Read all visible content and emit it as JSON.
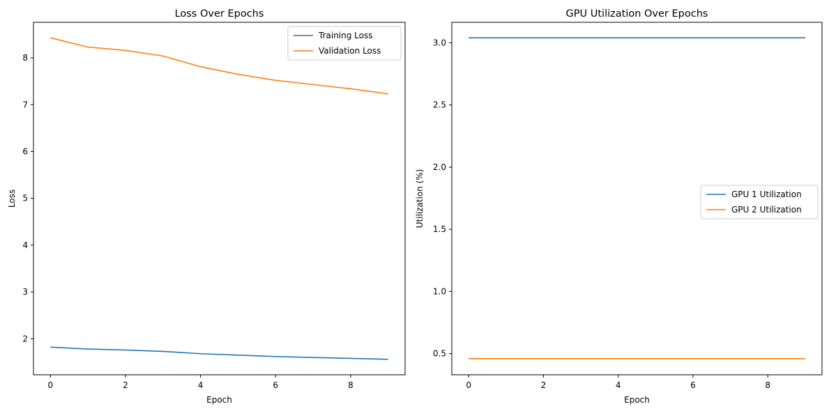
{
  "chart_data": [
    {
      "type": "line",
      "title": "Loss Over Epochs",
      "xlabel": "Epoch",
      "ylabel": "Loss",
      "xlim": [
        -0.45,
        9.45
      ],
      "ylim": [
        1.23,
        8.76
      ],
      "xticks": [
        0,
        2,
        4,
        6,
        8
      ],
      "yticks": [
        2,
        3,
        4,
        5,
        6,
        7,
        8
      ],
      "grid": false,
      "legend_position": "top-right",
      "series": [
        {
          "name": "Training Loss",
          "color": "#1f77b4",
          "x": [
            0,
            1,
            2,
            3,
            4,
            5,
            6,
            7,
            8,
            9
          ],
          "y": [
            1.82,
            1.78,
            1.76,
            1.73,
            1.68,
            1.65,
            1.62,
            1.6,
            1.58,
            1.56
          ]
        },
        {
          "name": "Validation Loss",
          "color": "#ff7f0e",
          "x": [
            0,
            1,
            2,
            3,
            4,
            5,
            6,
            7,
            8,
            9
          ],
          "y": [
            8.43,
            8.23,
            8.16,
            8.04,
            7.81,
            7.65,
            7.52,
            7.43,
            7.34,
            7.23
          ]
        }
      ]
    },
    {
      "type": "line",
      "title": "GPU Utilization Over Epochs",
      "xlabel": "Epoch",
      "ylabel": "Utilization (%)",
      "xlim": [
        -0.45,
        9.45
      ],
      "ylim": [
        0.33,
        3.165
      ],
      "xticks": [
        0,
        2,
        4,
        6,
        8
      ],
      "yticks": [
        0.5,
        1.0,
        1.5,
        2.0,
        2.5,
        3.0
      ],
      "yticklabels": [
        "0.5",
        "1.0",
        "1.5",
        "2.0",
        "2.5",
        "3.0"
      ],
      "grid": false,
      "legend_position": "center-right",
      "series": [
        {
          "name": "GPU 1 Utilization",
          "color": "#1f77b4",
          "x": [
            0,
            1,
            2,
            3,
            4,
            5,
            6,
            7,
            8,
            9
          ],
          "y": [
            3.04,
            3.04,
            3.04,
            3.04,
            3.04,
            3.04,
            3.04,
            3.04,
            3.04,
            3.04
          ]
        },
        {
          "name": "GPU 2 Utilization",
          "color": "#ff7f0e",
          "x": [
            0,
            1,
            2,
            3,
            4,
            5,
            6,
            7,
            8,
            9
          ],
          "y": [
            0.46,
            0.46,
            0.46,
            0.46,
            0.46,
            0.46,
            0.46,
            0.46,
            0.46,
            0.46
          ]
        }
      ]
    }
  ]
}
